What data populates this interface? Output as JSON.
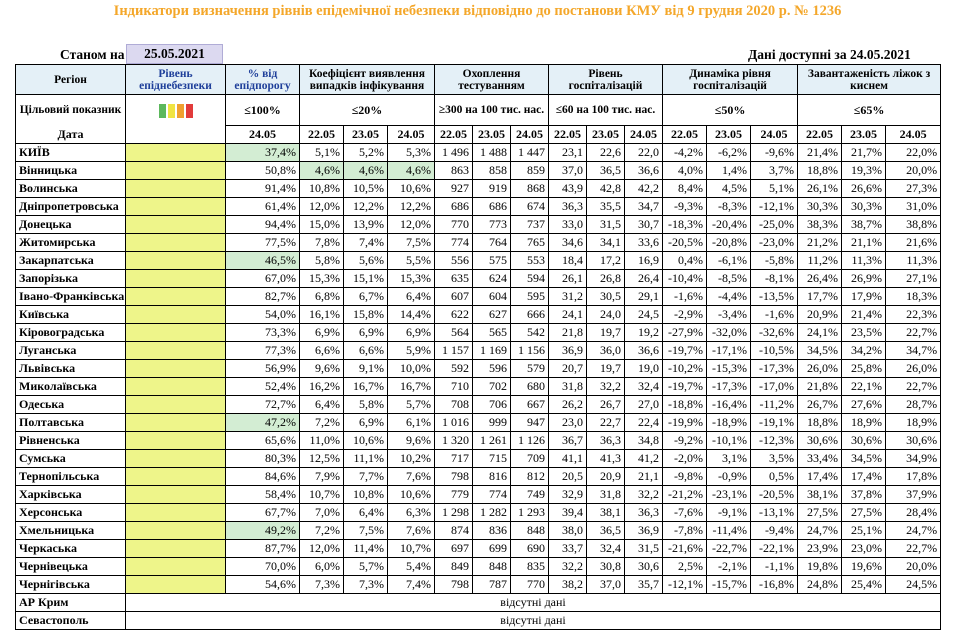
{
  "title": "Індикатори визначення рівнів епідемічної небезпеки відповідно до постанови КМУ від 9 грудня 2020 р. № 1236",
  "as_of_label": "Станом на",
  "as_of_date": "25.05.2021",
  "available_label": "Дані доступні за  24.05.2021",
  "headers": {
    "region": "Регіон",
    "level": "Рівень епіднебезпеки",
    "pct_threshold": "% від епідпорогу",
    "detection": "Коефіцієнт виявлення випадків інфікування",
    "testing": "Охоплення тестуванням",
    "hosp_level": "Рівень госпіталізацій",
    "hosp_dynamics": "Динаміка рівня госпіталізацій",
    "oxygen_beds": "Завантаженість ліжок з киснем"
  },
  "target": {
    "label": "Цільовий показник",
    "pct": "≤100%",
    "detection": "≤20%",
    "testing": "≥300 на 100 тис. нас.",
    "hosp_level": "≤60 на 100 тис. нас.",
    "hosp_dynamics": "≤50%",
    "oxygen_beds": "≤65%"
  },
  "level_colors": [
    "#5cb85c",
    "#f0e442",
    "#f0a030",
    "#e23b3b"
  ],
  "date_label": "Дата",
  "dates": {
    "pct": "24.05",
    "det": [
      "22.05",
      "23.05",
      "24.05"
    ],
    "test": [
      "22.05",
      "23.05",
      "24.05"
    ],
    "hosp": [
      "22.05",
      "23.05",
      "24.05"
    ],
    "dyn": [
      "22.05",
      "23.05",
      "24.05"
    ],
    "oxy": [
      "22.05",
      "23.05",
      "24.05"
    ]
  },
  "rows": [
    {
      "region": "КИЇВ",
      "pct": "37,4%",
      "pct_green": true,
      "det": [
        "5,1%",
        "5,2%",
        "5,3%"
      ],
      "det_green": false,
      "test": [
        "1 496",
        "1 488",
        "1 447"
      ],
      "hosp": [
        "23,1",
        "22,6",
        "22,0"
      ],
      "dyn": [
        "-4,2%",
        "-6,2%",
        "-9,6%"
      ],
      "oxy": [
        "21,4%",
        "21,7%",
        "22,0%"
      ]
    },
    {
      "region": "Вінницька",
      "pct": "50,8%",
      "pct_green": false,
      "det": [
        "4,6%",
        "4,6%",
        "4,6%"
      ],
      "det_green": true,
      "test": [
        "863",
        "858",
        "859"
      ],
      "hosp": [
        "37,0",
        "36,5",
        "36,6"
      ],
      "dyn": [
        "4,0%",
        "1,4%",
        "3,7%"
      ],
      "oxy": [
        "18,8%",
        "19,3%",
        "20,0%"
      ]
    },
    {
      "region": "Волинська",
      "pct": "91,4%",
      "pct_green": false,
      "det": [
        "10,8%",
        "10,5%",
        "10,6%"
      ],
      "det_green": false,
      "test": [
        "927",
        "919",
        "868"
      ],
      "hosp": [
        "43,9",
        "42,8",
        "42,2"
      ],
      "dyn": [
        "8,4%",
        "4,5%",
        "5,1%"
      ],
      "oxy": [
        "26,1%",
        "26,6%",
        "27,3%"
      ]
    },
    {
      "region": "Дніпропетровська",
      "pct": "61,4%",
      "pct_green": false,
      "det": [
        "12,0%",
        "12,2%",
        "12,2%"
      ],
      "det_green": false,
      "test": [
        "686",
        "686",
        "674"
      ],
      "hosp": [
        "36,3",
        "35,5",
        "34,7"
      ],
      "dyn": [
        "-9,3%",
        "-8,3%",
        "-12,1%"
      ],
      "oxy": [
        "30,3%",
        "30,3%",
        "31,0%"
      ]
    },
    {
      "region": "Донецька",
      "pct": "94,4%",
      "pct_green": false,
      "det": [
        "15,0%",
        "13,9%",
        "12,0%"
      ],
      "det_green": false,
      "test": [
        "770",
        "773",
        "737"
      ],
      "hosp": [
        "33,0",
        "31,5",
        "30,7"
      ],
      "dyn": [
        "-18,3%",
        "-20,4%",
        "-25,0%"
      ],
      "oxy": [
        "38,3%",
        "38,7%",
        "38,8%"
      ]
    },
    {
      "region": "Житомирська",
      "pct": "77,5%",
      "pct_green": false,
      "det": [
        "7,8%",
        "7,4%",
        "7,5%"
      ],
      "det_green": false,
      "test": [
        "774",
        "764",
        "765"
      ],
      "hosp": [
        "34,6",
        "34,1",
        "33,6"
      ],
      "dyn": [
        "-20,5%",
        "-20,8%",
        "-23,0%"
      ],
      "oxy": [
        "21,2%",
        "21,1%",
        "21,6%"
      ]
    },
    {
      "region": "Закарпатська",
      "pct": "46,5%",
      "pct_green": true,
      "det": [
        "5,8%",
        "5,6%",
        "5,5%"
      ],
      "det_green": false,
      "test": [
        "556",
        "575",
        "553"
      ],
      "hosp": [
        "18,4",
        "17,2",
        "16,9"
      ],
      "dyn": [
        "0,4%",
        "-6,1%",
        "-5,8%"
      ],
      "oxy": [
        "11,2%",
        "11,3%",
        "11,3%"
      ]
    },
    {
      "region": "Запорізька",
      "pct": "67,0%",
      "pct_green": false,
      "det": [
        "15,3%",
        "15,1%",
        "15,3%"
      ],
      "det_green": false,
      "test": [
        "635",
        "624",
        "594"
      ],
      "hosp": [
        "26,1",
        "26,8",
        "26,4"
      ],
      "dyn": [
        "-10,4%",
        "-8,5%",
        "-8,1%"
      ],
      "oxy": [
        "26,4%",
        "26,9%",
        "27,1%"
      ]
    },
    {
      "region": "Івано-Франківська",
      "pct": "82,7%",
      "pct_green": false,
      "det": [
        "6,8%",
        "6,7%",
        "6,4%"
      ],
      "det_green": false,
      "test": [
        "607",
        "604",
        "595"
      ],
      "hosp": [
        "31,2",
        "30,5",
        "29,1"
      ],
      "dyn": [
        "-1,6%",
        "-4,4%",
        "-13,5%"
      ],
      "oxy": [
        "17,7%",
        "17,9%",
        "18,3%"
      ]
    },
    {
      "region": "Київська",
      "pct": "54,0%",
      "pct_green": false,
      "det": [
        "16,1%",
        "15,8%",
        "14,4%"
      ],
      "det_green": false,
      "test": [
        "622",
        "627",
        "666"
      ],
      "hosp": [
        "24,1",
        "24,0",
        "24,5"
      ],
      "dyn": [
        "-2,9%",
        "-3,4%",
        "-1,6%"
      ],
      "oxy": [
        "20,9%",
        "21,4%",
        "22,3%"
      ]
    },
    {
      "region": "Кіровоградська",
      "pct": "73,3%",
      "pct_green": false,
      "det": [
        "6,9%",
        "6,9%",
        "6,9%"
      ],
      "det_green": false,
      "test": [
        "564",
        "565",
        "542"
      ],
      "hosp": [
        "21,8",
        "19,7",
        "19,2"
      ],
      "dyn": [
        "-27,9%",
        "-32,0%",
        "-32,6%"
      ],
      "oxy": [
        "24,1%",
        "23,5%",
        "22,7%"
      ]
    },
    {
      "region": "Луганська",
      "pct": "77,3%",
      "pct_green": false,
      "det": [
        "6,6%",
        "6,6%",
        "5,9%"
      ],
      "det_green": false,
      "test": [
        "1 157",
        "1 169",
        "1 156"
      ],
      "hosp": [
        "36,9",
        "36,0",
        "36,6"
      ],
      "dyn": [
        "-19,7%",
        "-17,1%",
        "-10,5%"
      ],
      "oxy": [
        "34,5%",
        "34,2%",
        "34,7%"
      ]
    },
    {
      "region": "Львівська",
      "pct": "56,9%",
      "pct_green": false,
      "det": [
        "9,6%",
        "9,1%",
        "10,0%"
      ],
      "det_green": false,
      "test": [
        "592",
        "596",
        "579"
      ],
      "hosp": [
        "20,7",
        "19,7",
        "19,0"
      ],
      "dyn": [
        "-10,2%",
        "-15,3%",
        "-17,3%"
      ],
      "oxy": [
        "26,0%",
        "25,8%",
        "26,0%"
      ]
    },
    {
      "region": "Миколаївська",
      "pct": "52,4%",
      "pct_green": false,
      "det": [
        "16,2%",
        "16,7%",
        "16,7%"
      ],
      "det_green": false,
      "test": [
        "710",
        "702",
        "680"
      ],
      "hosp": [
        "31,8",
        "32,2",
        "32,4"
      ],
      "dyn": [
        "-19,7%",
        "-17,3%",
        "-17,0%"
      ],
      "oxy": [
        "21,8%",
        "22,1%",
        "22,7%"
      ]
    },
    {
      "region": "Одеська",
      "pct": "72,7%",
      "pct_green": false,
      "det": [
        "6,4%",
        "5,8%",
        "5,7%"
      ],
      "det_green": false,
      "test": [
        "708",
        "706",
        "667"
      ],
      "hosp": [
        "26,2",
        "26,7",
        "27,0"
      ],
      "dyn": [
        "-18,8%",
        "-16,4%",
        "-11,2%"
      ],
      "oxy": [
        "26,7%",
        "27,6%",
        "28,7%"
      ]
    },
    {
      "region": "Полтавська",
      "pct": "47,2%",
      "pct_green": true,
      "det": [
        "7,2%",
        "6,9%",
        "6,1%"
      ],
      "det_green": false,
      "test": [
        "1 016",
        "999",
        "947"
      ],
      "hosp": [
        "23,0",
        "22,7",
        "22,4"
      ],
      "dyn": [
        "-19,9%",
        "-18,9%",
        "-19,1%"
      ],
      "oxy": [
        "18,8%",
        "18,9%",
        "18,9%"
      ]
    },
    {
      "region": "Рівненська",
      "pct": "65,6%",
      "pct_green": false,
      "det": [
        "11,0%",
        "10,6%",
        "9,6%"
      ],
      "det_green": false,
      "test": [
        "1 320",
        "1 261",
        "1 126"
      ],
      "hosp": [
        "36,7",
        "36,3",
        "34,8"
      ],
      "dyn": [
        "-9,2%",
        "-10,1%",
        "-12,3%"
      ],
      "oxy": [
        "30,6%",
        "30,6%",
        "30,6%"
      ]
    },
    {
      "region": "Сумська",
      "pct": "80,3%",
      "pct_green": false,
      "det": [
        "12,5%",
        "11,1%",
        "10,2%"
      ],
      "det_green": false,
      "test": [
        "717",
        "715",
        "709"
      ],
      "hosp": [
        "41,1",
        "41,3",
        "41,2"
      ],
      "dyn": [
        "-2,0%",
        "3,1%",
        "3,5%"
      ],
      "oxy": [
        "33,4%",
        "34,5%",
        "34,9%"
      ]
    },
    {
      "region": "Тернопільська",
      "pct": "84,6%",
      "pct_green": false,
      "det": [
        "7,9%",
        "7,7%",
        "7,6%"
      ],
      "det_green": false,
      "test": [
        "798",
        "816",
        "812"
      ],
      "hosp": [
        "20,5",
        "20,9",
        "21,1"
      ],
      "dyn": [
        "-9,8%",
        "-0,9%",
        "0,5%"
      ],
      "oxy": [
        "17,4%",
        "17,4%",
        "17,8%"
      ]
    },
    {
      "region": "Харківська",
      "pct": "58,4%",
      "pct_green": false,
      "det": [
        "10,7%",
        "10,8%",
        "10,6%"
      ],
      "det_green": false,
      "test": [
        "779",
        "774",
        "749"
      ],
      "hosp": [
        "32,9",
        "31,8",
        "32,2"
      ],
      "dyn": [
        "-21,2%",
        "-23,1%",
        "-20,5%"
      ],
      "oxy": [
        "38,1%",
        "37,8%",
        "37,9%"
      ]
    },
    {
      "region": "Херсонська",
      "pct": "67,7%",
      "pct_green": false,
      "det": [
        "7,0%",
        "6,4%",
        "6,3%"
      ],
      "det_green": false,
      "test": [
        "1 298",
        "1 282",
        "1 293"
      ],
      "hosp": [
        "39,4",
        "38,1",
        "36,3"
      ],
      "dyn": [
        "-7,6%",
        "-9,1%",
        "-13,1%"
      ],
      "oxy": [
        "27,5%",
        "27,5%",
        "28,4%"
      ]
    },
    {
      "region": "Хмельницька",
      "pct": "49,2%",
      "pct_green": true,
      "det": [
        "7,2%",
        "7,5%",
        "7,6%"
      ],
      "det_green": false,
      "test": [
        "874",
        "836",
        "848"
      ],
      "hosp": [
        "38,0",
        "36,5",
        "36,9"
      ],
      "dyn": [
        "-7,8%",
        "-11,4%",
        "-9,4%"
      ],
      "oxy": [
        "24,7%",
        "25,1%",
        "24,7%"
      ]
    },
    {
      "region": "Черкаська",
      "pct": "87,7%",
      "pct_green": false,
      "det": [
        "12,0%",
        "11,4%",
        "10,7%"
      ],
      "det_green": false,
      "test": [
        "697",
        "699",
        "690"
      ],
      "hosp": [
        "33,7",
        "32,4",
        "31,5"
      ],
      "dyn": [
        "-21,6%",
        "-22,7%",
        "-22,1%"
      ],
      "oxy": [
        "23,9%",
        "23,0%",
        "22,7%"
      ]
    },
    {
      "region": "Чернівецька",
      "pct": "70,0%",
      "pct_green": false,
      "det": [
        "6,0%",
        "5,7%",
        "5,4%"
      ],
      "det_green": false,
      "test": [
        "849",
        "848",
        "835"
      ],
      "hosp": [
        "32,2",
        "30,8",
        "30,6"
      ],
      "dyn": [
        "2,5%",
        "-2,1%",
        "-1,1%"
      ],
      "oxy": [
        "19,8%",
        "19,6%",
        "20,0%"
      ]
    },
    {
      "region": "Чернігівська",
      "pct": "54,6%",
      "pct_green": false,
      "det": [
        "7,3%",
        "7,3%",
        "7,4%"
      ],
      "det_green": false,
      "test": [
        "798",
        "787",
        "770"
      ],
      "hosp": [
        "38,2",
        "37,0",
        "35,7"
      ],
      "dyn": [
        "-12,1%",
        "-15,7%",
        "-16,8%"
      ],
      "oxy": [
        "24,8%",
        "25,4%",
        "24,5%"
      ]
    }
  ],
  "missing_rows": [
    {
      "region": "АР Крим",
      "text": "відсутні дані"
    },
    {
      "region": "Севастополь",
      "text": "відсутні дані"
    }
  ]
}
